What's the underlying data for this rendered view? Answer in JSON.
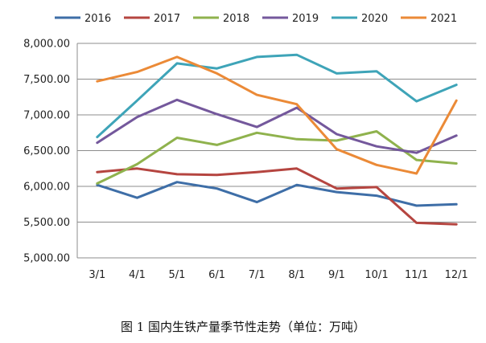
{
  "caption": "图 1  国内生铁产量季节性走势（单位：万吨）",
  "chart_data": {
    "type": "line",
    "title": "",
    "xlabel": "",
    "ylabel": "",
    "categories": [
      "3/1",
      "4/1",
      "5/1",
      "6/1",
      "7/1",
      "8/1",
      "9/1",
      "10/1",
      "11/1",
      "12/1"
    ],
    "ylim": [
      5000,
      8000
    ],
    "yticks": [
      5000,
      5500,
      6000,
      6500,
      7000,
      7500,
      8000
    ],
    "ytick_labels": [
      "5,000.00",
      "5,500.00",
      "6,000.00",
      "6,500.00",
      "7,000.00",
      "7,500.00",
      "8,000.00"
    ],
    "grid": "horizontal",
    "legend_position": "top",
    "series": [
      {
        "name": "2016",
        "color": "#3E6EA7",
        "values": [
          6020,
          5840,
          6060,
          5970,
          5780,
          6020,
          5920,
          5870,
          5730,
          5750
        ]
      },
      {
        "name": "2017",
        "color": "#B54540",
        "values": [
          6200,
          6250,
          6170,
          6160,
          6200,
          6250,
          5970,
          5990,
          5490,
          5470
        ]
      },
      {
        "name": "2018",
        "color": "#8FB24D",
        "values": [
          6040,
          6310,
          6680,
          6580,
          6750,
          6660,
          6640,
          6770,
          6370,
          6320
        ]
      },
      {
        "name": "2019",
        "color": "#74589C",
        "values": [
          6610,
          6970,
          7210,
          7010,
          6830,
          7100,
          6730,
          6560,
          6470,
          6710
        ]
      },
      {
        "name": "2020",
        "color": "#3EA4B8",
        "values": [
          6690,
          7200,
          7720,
          7650,
          7810,
          7840,
          7580,
          7610,
          7190,
          7420
        ]
      },
      {
        "name": "2021",
        "color": "#EB8A37",
        "values": [
          7470,
          7600,
          7810,
          7580,
          7280,
          7150,
          6520,
          6300,
          6180,
          7200
        ]
      }
    ]
  }
}
